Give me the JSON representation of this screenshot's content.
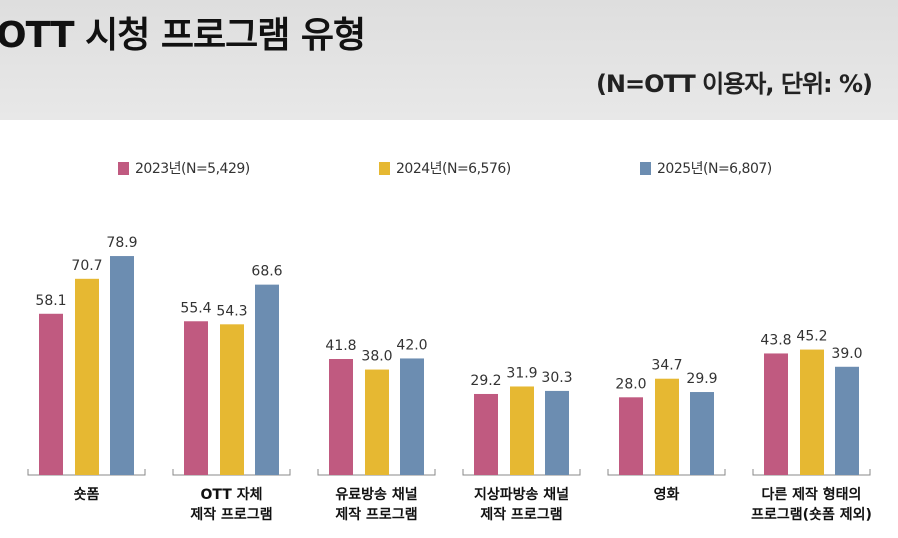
{
  "header": {
    "title": "OTT 시청 프로그램 유형",
    "subtitle": "(N=OTT 이용자, 단위: %)"
  },
  "chart_data": {
    "type": "bar",
    "title": "OTT 시청 프로그램 유형",
    "unit": "%",
    "categories": [
      [
        "숏폼"
      ],
      [
        "OTT 자체",
        "제작 프로그램"
      ],
      [
        "유료방송 채널",
        "제작 프로그램"
      ],
      [
        "지상파방송 채널",
        "제작 프로그램"
      ],
      [
        "영화"
      ],
      [
        "다른 제작 형태의",
        "프로그램(숏폼 제외)"
      ]
    ],
    "series": [
      {
        "name": "2023년(N=5,429)",
        "color": "#c05a80",
        "values": [
          58.1,
          55.4,
          41.8,
          29.2,
          28.0,
          43.8
        ]
      },
      {
        "name": "2024년(N=6,576)",
        "color": "#e6b832",
        "values": [
          70.7,
          54.3,
          38.0,
          31.9,
          34.7,
          45.2
        ]
      },
      {
        "name": "2025년(N=6,807)",
        "color": "#6c8db1",
        "values": [
          78.9,
          68.6,
          42.0,
          30.3,
          29.9,
          39.0
        ]
      }
    ],
    "ylim": [
      0,
      100
    ],
    "legend": "top-center",
    "grid": false
  }
}
